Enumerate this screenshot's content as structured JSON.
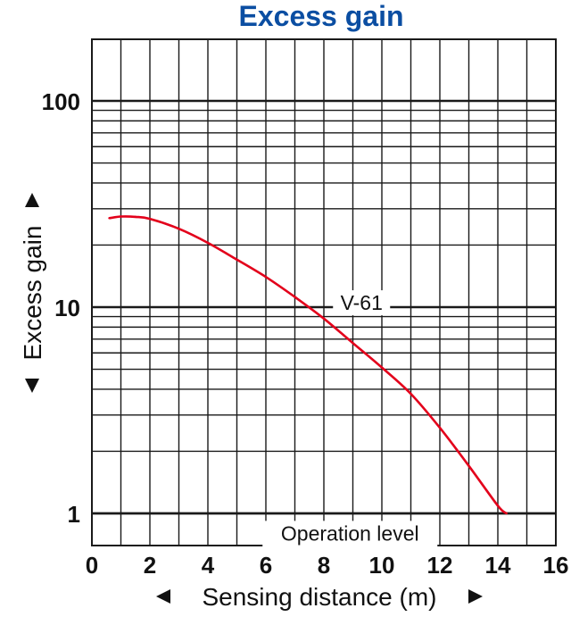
{
  "chart_data": {
    "type": "line",
    "title": "Excess gain",
    "xlabel": "Sensing distance (m)",
    "ylabel": "Excess gain",
    "x_ticks": [
      "0",
      "2",
      "4",
      "6",
      "8",
      "10",
      "12",
      "14",
      "16"
    ],
    "y_ticks": [
      "1",
      "10",
      "100"
    ],
    "xlim": [
      0,
      16
    ],
    "ylim": [
      0.65,
      200
    ],
    "y_scale": "log",
    "grid": true,
    "series": [
      {
        "name": "V-61",
        "color": "#e3001b",
        "x": [
          0.6,
          1.0,
          1.5,
          2.0,
          3.0,
          4.0,
          5.0,
          6.0,
          7.0,
          8.0,
          9.0,
          10.0,
          11.0,
          12.0,
          13.0,
          14.0,
          14.3
        ],
        "y": [
          27,
          27.5,
          27.4,
          26.8,
          24,
          20.5,
          17,
          14,
          11.2,
          8.8,
          6.7,
          5.1,
          3.8,
          2.6,
          1.7,
          1.09,
          1.0
        ]
      }
    ],
    "annotations": [
      {
        "text": "Operation level",
        "x": 8.9,
        "y": 0.8
      },
      {
        "text": "V-61",
        "x": 9.3,
        "y": 10.5
      }
    ],
    "colors": {
      "title": "#0b4ea2",
      "line": "#e3001b",
      "grid": "#1a1a1a"
    }
  }
}
